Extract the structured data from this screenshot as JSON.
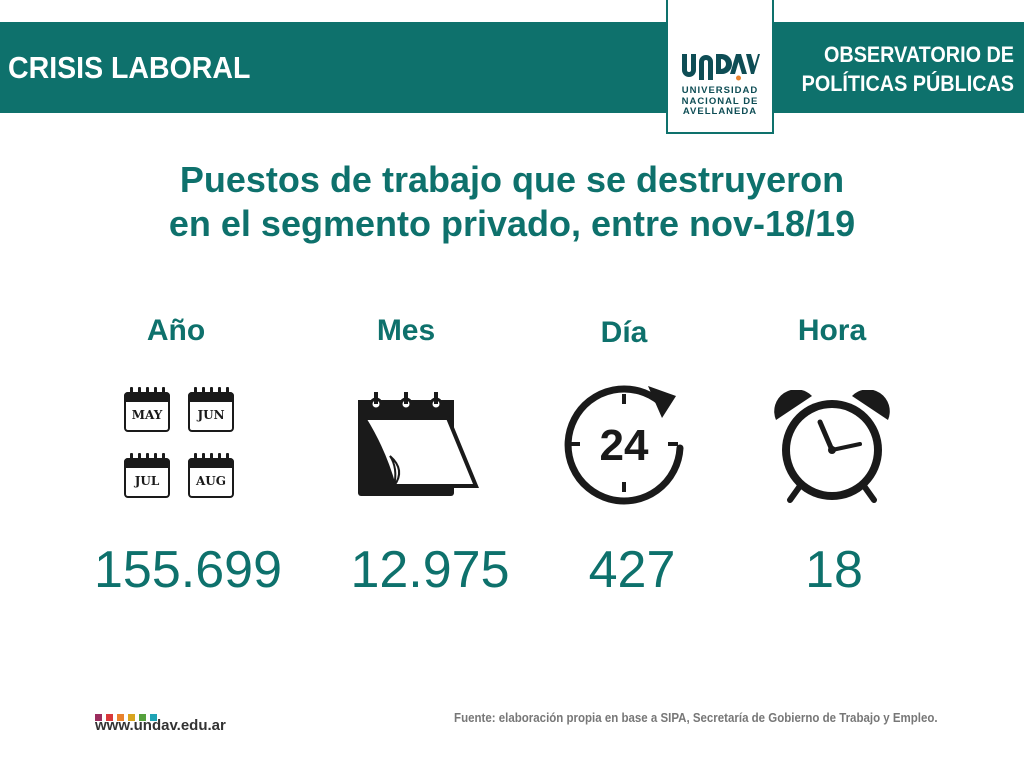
{
  "header": {
    "left_title": "CRISIS LABORAL",
    "right_title_line1": "OBSERVATORIO DE",
    "right_title_line2": "POLÍTICAS PÚBLICAS",
    "logo_mark": "UNDAV",
    "logo_line1": "UNIVERSIDAD",
    "logo_line2": "NACIONAL DE",
    "logo_line3": "AVELLANEDA"
  },
  "title": {
    "line1": "Puestos de trabajo que se destruyeron",
    "line2": "en el segmento privado, entre nov-18/19"
  },
  "columns": [
    {
      "label": "Año",
      "value": "155.699",
      "icon": "calendar-months-icon"
    },
    {
      "label": "Mes",
      "value": "12.975",
      "icon": "calendar-page-icon"
    },
    {
      "label": "Día",
      "value": "427",
      "icon": "clock-24-icon"
    },
    {
      "label": "Hora",
      "value": "18",
      "icon": "alarm-clock-icon"
    }
  ],
  "months": [
    "MAY",
    "JUN",
    "JUL",
    "AUG"
  ],
  "footer": {
    "website": "www.undav.edu.ar",
    "source": "Fuente: elaboración propia en base a SIPA, Secretaría de Gobierno de Trabajo y Empleo.",
    "square_colors": [
      "#9b2d5e",
      "#d9383a",
      "#e9822c",
      "#d8a51f",
      "#55a13c",
      "#1fa4b5"
    ]
  },
  "colors": {
    "brand_teal": "#0e716c",
    "icon_black": "#1a1a1a"
  }
}
